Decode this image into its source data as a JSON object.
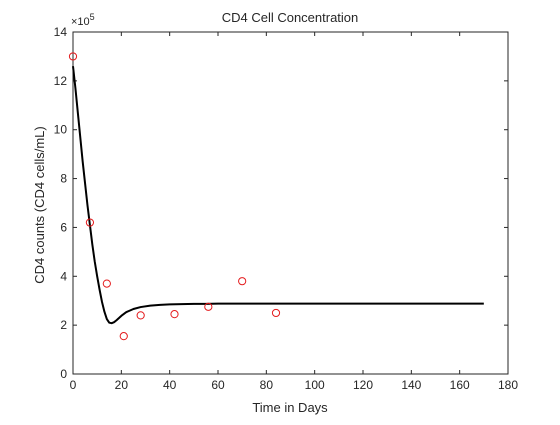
{
  "chart_data": {
    "type": "scatter",
    "title": "CD4 Cell Concentration",
    "xlabel": "Time in Days",
    "ylabel": "CD4 counts (CD4 cells/mL)",
    "y_exponent_base": "×10",
    "y_exponent_power": "5",
    "xlim": [
      0,
      180
    ],
    "ylim": [
      0,
      14
    ],
    "xticks": [
      0,
      20,
      40,
      60,
      80,
      100,
      120,
      140,
      160,
      180
    ],
    "yticks": [
      0,
      2,
      4,
      6,
      8,
      10,
      12,
      14
    ],
    "grid": "off",
    "legend": "none",
    "colors": {
      "data_markers": "#e41a1c",
      "model_line": "#000000",
      "axes": "#262626"
    },
    "series": [
      {
        "kind": "markers",
        "marker": "circle-open",
        "x": [
          0,
          7,
          14,
          21,
          28,
          42,
          56,
          70,
          84
        ],
        "y": [
          13.0,
          6.2,
          3.7,
          1.55,
          2.4,
          2.45,
          2.75,
          3.8,
          2.5
        ]
      },
      {
        "kind": "line",
        "x": [
          0,
          1,
          2,
          3,
          4,
          5,
          6,
          7,
          8,
          9,
          10,
          11,
          12,
          13,
          14,
          15,
          16,
          17,
          18,
          20,
          22,
          25,
          28,
          32,
          36,
          40,
          45,
          50,
          55,
          60,
          70,
          80,
          90,
          100,
          120,
          140,
          170
        ],
        "y": [
          12.6,
          11.7,
          10.7,
          9.7,
          8.7,
          7.8,
          6.9,
          6.1,
          5.3,
          4.6,
          4.0,
          3.45,
          2.95,
          2.55,
          2.25,
          2.1,
          2.08,
          2.12,
          2.2,
          2.38,
          2.53,
          2.66,
          2.74,
          2.8,
          2.83,
          2.85,
          2.86,
          2.87,
          2.87,
          2.88,
          2.88,
          2.88,
          2.88,
          2.88,
          2.88,
          2.88,
          2.88
        ]
      }
    ]
  }
}
